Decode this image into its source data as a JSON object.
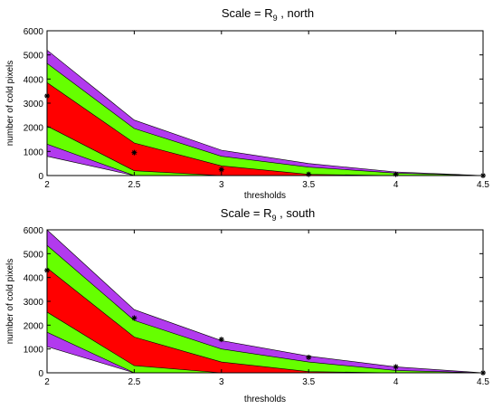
{
  "chart_data": [
    {
      "type": "area",
      "title": "Scale = R",
      "title_subscript": "9",
      "title_suffix": " , north",
      "xlabel": "thresholds",
      "ylabel": "number of cold pixels",
      "xlim": [
        2,
        4.5
      ],
      "ylim": [
        0,
        6000
      ],
      "x": [
        2,
        2.5,
        3,
        3.5,
        4,
        4.5
      ],
      "xticks": [
        "2",
        "2.5",
        "3",
        "3.5",
        "4",
        "4.5"
      ],
      "yticks": [
        "0",
        "1000",
        "2000",
        "3000",
        "4000",
        "5000",
        "6000"
      ],
      "bands": [
        {
          "color": "#b23aee",
          "upper": [
            5200,
            2300,
            1050,
            500,
            150,
            0
          ],
          "lower": [
            800,
            0,
            0,
            0,
            0,
            0
          ]
        },
        {
          "color": "#66ff00",
          "upper": [
            4650,
            1950,
            800,
            350,
            100,
            0
          ],
          "lower": [
            1300,
            0,
            0,
            0,
            0,
            0
          ]
        },
        {
          "color": "#ff0000",
          "upper": [
            3850,
            1350,
            400,
            50,
            0,
            0
          ],
          "lower": [
            2050,
            200,
            0,
            0,
            0,
            0
          ]
        }
      ],
      "markers": [
        {
          "x": 2,
          "y": 3300
        },
        {
          "x": 2.5,
          "y": 950
        },
        {
          "x": 3,
          "y": 250
        },
        {
          "x": 3.5,
          "y": 50
        },
        {
          "x": 4,
          "y": 50
        },
        {
          "x": 4.5,
          "y": 0
        }
      ],
      "grid": false
    },
    {
      "type": "area",
      "title": "Scale = R",
      "title_subscript": "9",
      "title_suffix": " , south",
      "xlabel": "thresholds",
      "ylabel": "number of cold pixels",
      "xlim": [
        2,
        4.5
      ],
      "ylim": [
        0,
        6000
      ],
      "x": [
        2,
        2.5,
        3,
        3.5,
        4,
        4.5
      ],
      "xticks": [
        "2",
        "2.5",
        "3",
        "3.5",
        "4",
        "4.5"
      ],
      "yticks": [
        "0",
        "1000",
        "2000",
        "3000",
        "4000",
        "5000",
        "6000"
      ],
      "bands": [
        {
          "color": "#b23aee",
          "upper": [
            6000,
            2650,
            1350,
            700,
            250,
            0
          ],
          "lower": [
            1100,
            0,
            0,
            0,
            0,
            0
          ]
        },
        {
          "color": "#66ff00",
          "upper": [
            5350,
            2200,
            1000,
            450,
            100,
            0
          ],
          "lower": [
            1700,
            0,
            0,
            0,
            0,
            0
          ]
        },
        {
          "color": "#ff0000",
          "upper": [
            4400,
            1500,
            450,
            50,
            0,
            0
          ],
          "lower": [
            2550,
            300,
            0,
            0,
            0,
            0
          ]
        }
      ],
      "markers": [
        {
          "x": 2,
          "y": 4300
        },
        {
          "x": 2.5,
          "y": 2300
        },
        {
          "x": 3,
          "y": 1400
        },
        {
          "x": 3.5,
          "y": 650
        },
        {
          "x": 4,
          "y": 250
        },
        {
          "x": 4.5,
          "y": 0
        }
      ],
      "grid": false
    }
  ]
}
